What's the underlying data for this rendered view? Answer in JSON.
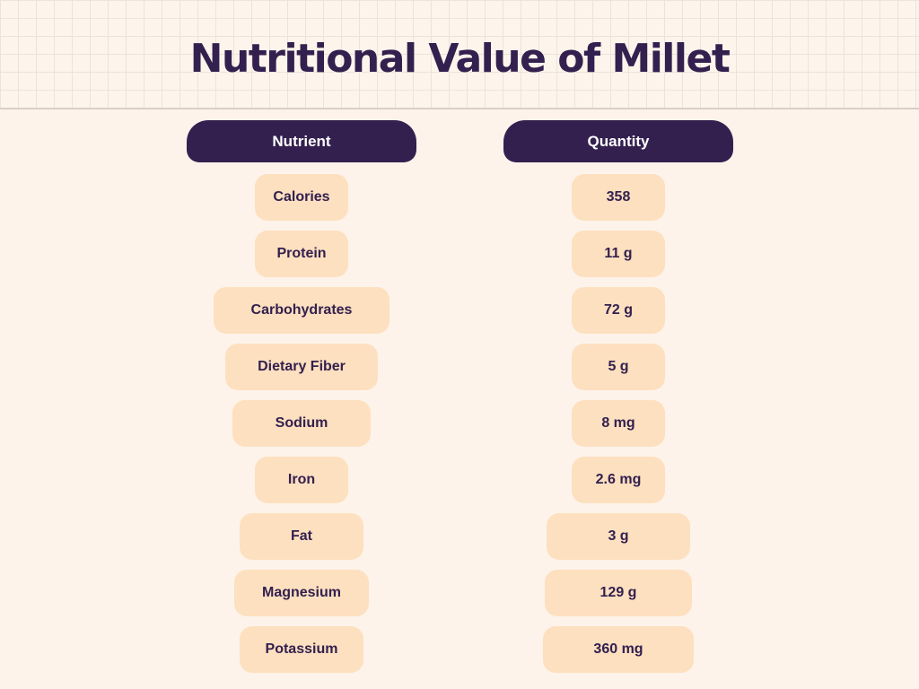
{
  "title": "Nutritional Value of Millet",
  "headers": {
    "nutrient": "Nutrient",
    "quantity": "Quantity"
  },
  "rows": [
    {
      "nutrient": "Calories",
      "quantity": "358"
    },
    {
      "nutrient": "Protein",
      "quantity": "11 g"
    },
    {
      "nutrient": "Carbohydrates",
      "quantity": "72 g"
    },
    {
      "nutrient": "Dietary Fiber",
      "quantity": "5 g"
    },
    {
      "nutrient": "Sodium",
      "quantity": "8 mg"
    },
    {
      "nutrient": "Iron",
      "quantity": "2.6 mg"
    },
    {
      "nutrient": "Fat",
      "quantity": "3 g"
    },
    {
      "nutrient": "Magnesium",
      "quantity": "129 g"
    },
    {
      "nutrient": "Potassium",
      "quantity": "360 mg"
    }
  ],
  "colors": {
    "background": "#fdf3ea",
    "header_fill": "#33204f",
    "pill_fill": "#fde0bf",
    "text": "#33204f"
  }
}
